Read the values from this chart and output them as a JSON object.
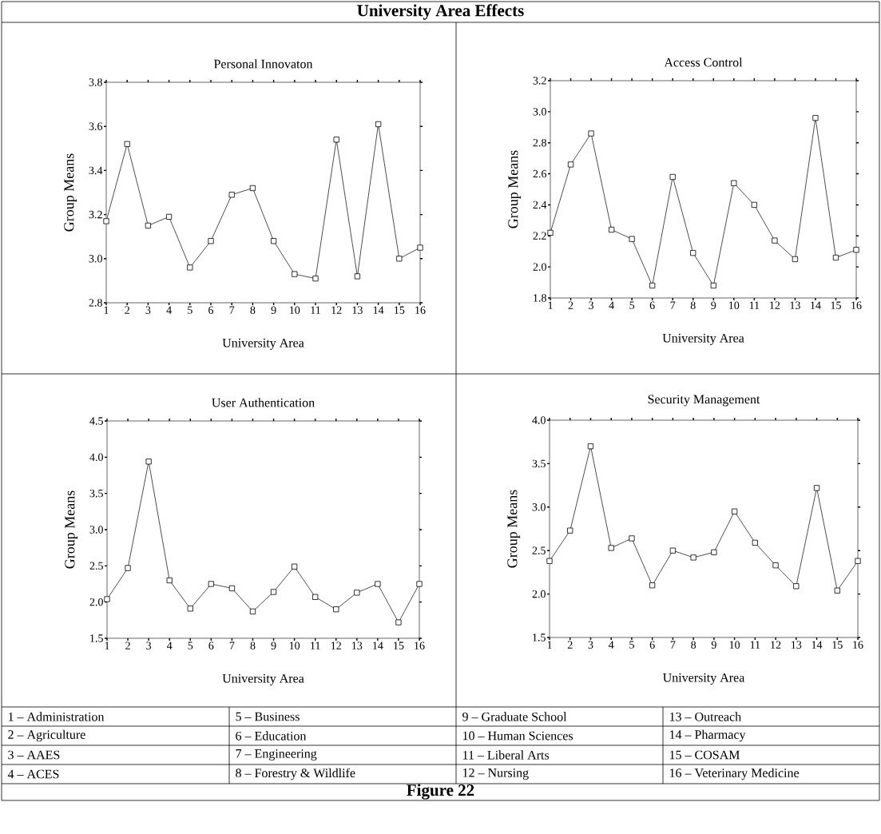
{
  "chart_data": [
    {
      "type": "other",
      "title": "University Area Effects"
    },
    {
      "type": "line",
      "title": "Personal Innovaton",
      "xlabel": "University Area",
      "ylabel": "Group Means",
      "color": "#000000",
      "marker": "square",
      "x": [
        1,
        2,
        3,
        4,
        5,
        6,
        7,
        8,
        9,
        10,
        11,
        12,
        13,
        14,
        15,
        16
      ],
      "values": [
        3.17,
        3.52,
        3.15,
        3.19,
        2.96,
        3.08,
        3.29,
        3.32,
        3.08,
        2.93,
        2.91,
        3.54,
        2.92,
        3.61,
        3.0,
        3.05
      ],
      "xlim": [
        1,
        16
      ],
      "xticks": [
        1,
        2,
        3,
        4,
        5,
        6,
        7,
        8,
        9,
        10,
        11,
        12,
        13,
        14,
        15,
        16
      ],
      "ylim": [
        2.8,
        3.8
      ],
      "yticks": [
        {
          "value": 2.8,
          "label": "2.8"
        },
        {
          "value": 3.0,
          "label": "3.0"
        },
        {
          "value": 3.2,
          "label": "3.2"
        },
        {
          "value": 3.4,
          "label": "3.4"
        },
        {
          "value": 3.6,
          "label": "3.6"
        },
        {
          "value": 3.8,
          "label": "3.8"
        }
      ]
    },
    {
      "type": "line",
      "title": "Access Control",
      "xlabel": "University Area",
      "ylabel": "Group Means",
      "color": "#000000",
      "marker": "square",
      "x": [
        1,
        2,
        3,
        4,
        5,
        6,
        7,
        8,
        9,
        10,
        11,
        12,
        13,
        14,
        15,
        16
      ],
      "values": [
        2.22,
        2.66,
        2.86,
        2.24,
        2.18,
        1.88,
        2.58,
        2.09,
        1.88,
        2.54,
        2.4,
        2.17,
        2.05,
        2.96,
        2.06,
        2.11
      ],
      "xlim": [
        1,
        16
      ],
      "xticks": [
        1,
        2,
        3,
        4,
        5,
        6,
        7,
        8,
        9,
        10,
        11,
        12,
        13,
        14,
        15,
        16
      ],
      "ylim": [
        1.8,
        3.2
      ],
      "yticks": [
        {
          "value": 1.8,
          "label": "1.8"
        },
        {
          "value": 2.0,
          "label": "2.0"
        },
        {
          "value": 2.2,
          "label": "2.2"
        },
        {
          "value": 2.4,
          "label": "2.4"
        },
        {
          "value": 2.6,
          "label": "2.6"
        },
        {
          "value": 2.8,
          "label": "2.8"
        },
        {
          "value": 3.0,
          "label": "3.0"
        },
        {
          "value": 3.2,
          "label": "3.2"
        }
      ]
    },
    {
      "type": "line",
      "title": "User Authentication",
      "xlabel": "University Area",
      "ylabel": "Group Means",
      "color": "#000000",
      "marker": "square",
      "x": [
        1,
        2,
        3,
        4,
        5,
        6,
        7,
        8,
        9,
        10,
        11,
        12,
        13,
        14,
        15,
        16
      ],
      "values": [
        2.04,
        2.47,
        3.94,
        2.3,
        1.91,
        2.25,
        2.19,
        1.87,
        2.14,
        2.49,
        2.07,
        1.9,
        2.13,
        2.25,
        1.72,
        2.25
      ],
      "xlim": [
        1,
        16
      ],
      "xticks": [
        1,
        2,
        3,
        4,
        5,
        6,
        7,
        8,
        9,
        10,
        11,
        12,
        13,
        14,
        15,
        16
      ],
      "ylim": [
        1.5,
        4.5
      ],
      "yticks": [
        {
          "value": 1.5,
          "label": "1.5"
        },
        {
          "value": 2.0,
          "label": "2.0"
        },
        {
          "value": 2.5,
          "label": "2.5"
        },
        {
          "value": 3.0,
          "label": "3.0"
        },
        {
          "value": 3.5,
          "label": "3.5"
        },
        {
          "value": 4.0,
          "label": "4.0"
        },
        {
          "value": 4.5,
          "label": "4.5"
        }
      ]
    },
    {
      "type": "line",
      "title": "Security Management",
      "xlabel": "University Area",
      "ylabel": "Group Means",
      "color": "#000000",
      "marker": "square",
      "x": [
        1,
        2,
        3,
        4,
        5,
        6,
        7,
        8,
        9,
        10,
        11,
        12,
        13,
        14,
        15,
        16
      ],
      "values": [
        2.38,
        2.73,
        3.7,
        2.53,
        2.64,
        2.1,
        2.5,
        2.42,
        2.48,
        2.95,
        2.59,
        2.33,
        2.09,
        3.22,
        2.04,
        2.38
      ],
      "xlim": [
        1,
        16
      ],
      "xticks": [
        1,
        2,
        3,
        4,
        5,
        6,
        7,
        8,
        9,
        10,
        11,
        12,
        13,
        14,
        15,
        16
      ],
      "ylim": [
        1.5,
        4.0
      ],
      "yticks": [
        {
          "value": 1.5,
          "label": "1.5"
        },
        {
          "value": 2.0,
          "label": "2.0"
        },
        {
          "value": 2.5,
          "label": "2.5"
        },
        {
          "value": 3.0,
          "label": "3.0"
        },
        {
          "value": 3.5,
          "label": "3.5"
        },
        {
          "value": 4.0,
          "label": "4.0"
        }
      ]
    },
    {
      "type": "other",
      "annotations": [
        "1 – Administration",
        "5 – Business",
        "9 – Graduate School",
        "13 – Outreach",
        "2 – Agriculture",
        "6 – Education",
        "10 – Human Sciences",
        "14 – Pharmacy",
        "3 – AAES",
        "7 – Engineering",
        "11 – Liberal Arts",
        "15 – COSAM",
        "4 – ACES",
        "8 – Forestry & Wildlife",
        "12 – Nursing",
        "16 – Veterinary Medicine",
        "Figure 22"
      ]
    }
  ]
}
